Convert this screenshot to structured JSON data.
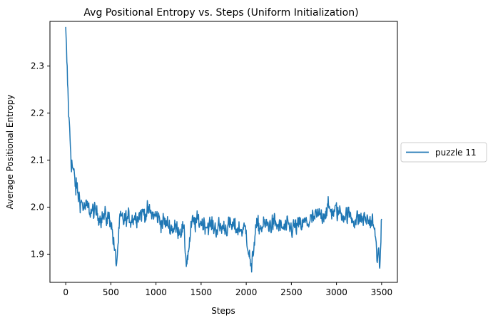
{
  "chart_data": {
    "type": "line",
    "title": "Avg Positional Entropy vs. Steps (Uniform Initialization)",
    "xlabel": "Steps",
    "ylabel": "Average Positional Entropy",
    "xlim": [
      -175,
      3675
    ],
    "ylim": [
      1.84,
      2.395
    ],
    "xticks": [
      0,
      500,
      1000,
      1500,
      2000,
      2500,
      3000,
      3500
    ],
    "yticks": [
      1.9,
      2.0,
      2.1,
      2.2,
      2.3
    ],
    "xtick_labels": [
      "0",
      "500",
      "1000",
      "1500",
      "2000",
      "2500",
      "3000",
      "3500"
    ],
    "ytick_labels": [
      "1.9",
      "2.0",
      "2.1",
      "2.2",
      "2.3"
    ],
    "grid": false,
    "legend_position": "outside right",
    "series": [
      {
        "name": "puzzle 11",
        "color": "#1f77b4",
        "x": [
          0,
          20,
          40,
          60,
          80,
          100,
          150,
          200,
          300,
          400,
          500,
          560,
          600,
          700,
          800,
          900,
          1000,
          1100,
          1200,
          1300,
          1340,
          1400,
          1500,
          1600,
          1700,
          1800,
          1900,
          2000,
          2060,
          2100,
          2200,
          2300,
          2400,
          2500,
          2600,
          2700,
          2800,
          2900,
          3000,
          3100,
          3200,
          3300,
          3400,
          3480,
          3500
        ],
        "y": [
          2.37,
          2.26,
          2.17,
          2.11,
          2.08,
          2.05,
          2.02,
          2.0,
          1.99,
          1.98,
          1.975,
          1.875,
          1.97,
          1.975,
          1.985,
          1.99,
          1.98,
          1.965,
          1.955,
          1.955,
          1.882,
          1.965,
          1.97,
          1.96,
          1.955,
          1.96,
          1.955,
          1.95,
          1.862,
          1.955,
          1.96,
          1.965,
          1.955,
          1.955,
          1.96,
          1.97,
          1.98,
          1.995,
          1.99,
          1.985,
          1.975,
          1.975,
          1.97,
          1.87,
          1.975
        ]
      }
    ]
  }
}
